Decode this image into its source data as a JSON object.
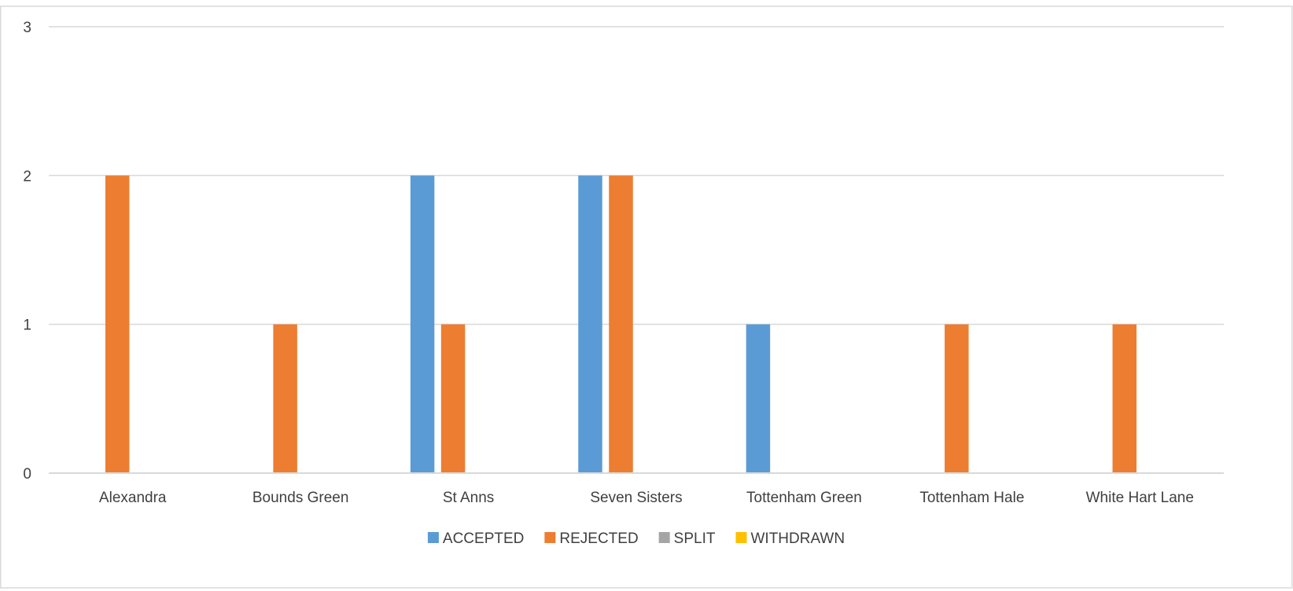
{
  "chart_data": {
    "type": "bar",
    "title": "",
    "xlabel": "",
    "ylabel": "",
    "categories": [
      "Alexandra",
      "Bounds Green",
      "St Anns",
      "Seven Sisters",
      "Tottenham Green",
      "Tottenham Hale",
      "White Hart Lane"
    ],
    "series": [
      {
        "name": "ACCEPTED",
        "color": "#5b9bd5",
        "values": [
          0,
          0,
          2,
          2,
          1,
          0,
          0
        ]
      },
      {
        "name": "REJECTED",
        "color": "#ed7d31",
        "values": [
          2,
          1,
          1,
          2,
          0,
          1,
          1
        ]
      },
      {
        "name": "SPLIT",
        "color": "#a5a5a5",
        "values": [
          0,
          0,
          0,
          0,
          0,
          0,
          0
        ]
      },
      {
        "name": "WITHDRAWN",
        "color": "#ffc000",
        "values": [
          0,
          0,
          0,
          0,
          0,
          0,
          0
        ]
      }
    ],
    "ylim": [
      0,
      3
    ],
    "yticks": [
      "0",
      "1",
      "2",
      "3"
    ],
    "grid": true,
    "legend_position": "bottom"
  }
}
